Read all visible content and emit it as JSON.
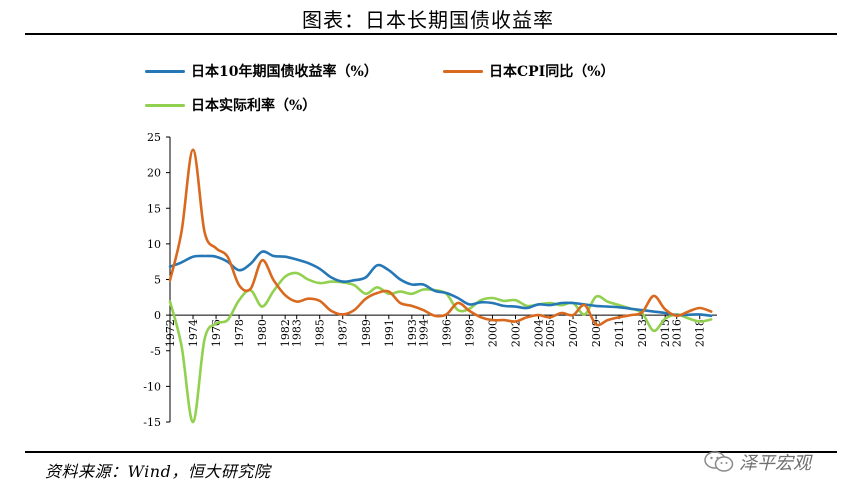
{
  "page": {
    "title": "图表：日本长期国债收益率",
    "source": "资料来源：Wind，恒大研究院",
    "watermark": "泽平宏观"
  },
  "legend": [
    {
      "label": "日本10年期国债收益率（%）",
      "color": "#2577b5"
    },
    {
      "label": "日本CPI同比（%）",
      "color": "#d8691e"
    },
    {
      "label": "日本实际利率（%）",
      "color": "#92d050"
    }
  ],
  "chart_data": {
    "type": "line",
    "ylim": [
      -15,
      25
    ],
    "yticks": [
      -15,
      -10,
      -5,
      0,
      5,
      10,
      15,
      20,
      25
    ],
    "xlim": [
      1972,
      2019.5
    ],
    "xticks": [
      1972,
      1974,
      1976,
      1978,
      1980,
      1982,
      1983,
      1985,
      1987,
      1989,
      1991,
      1993,
      1994,
      1996,
      1998,
      2000,
      2002,
      2004,
      2005,
      2007,
      2009,
      2011,
      2013,
      2015,
      2016,
      2018
    ],
    "series": [
      {
        "name": "日本10年期国债收益率（%）",
        "color": "#2577b5",
        "points": [
          [
            1972,
            6.8
          ],
          [
            1973,
            7.4
          ],
          [
            1974,
            8.2
          ],
          [
            1975,
            8.3
          ],
          [
            1976,
            8.2
          ],
          [
            1977,
            7.5
          ],
          [
            1978,
            6.3
          ],
          [
            1979,
            7.2
          ],
          [
            1980,
            8.9
          ],
          [
            1981,
            8.3
          ],
          [
            1982,
            8.2
          ],
          [
            1983,
            7.8
          ],
          [
            1984,
            7.3
          ],
          [
            1985,
            6.5
          ],
          [
            1986,
            5.3
          ],
          [
            1987,
            4.7
          ],
          [
            1988,
            4.9
          ],
          [
            1989,
            5.3
          ],
          [
            1990,
            7.0
          ],
          [
            1991,
            6.3
          ],
          [
            1992,
            5.0
          ],
          [
            1993,
            4.3
          ],
          [
            1994,
            4.3
          ],
          [
            1995,
            3.4
          ],
          [
            1996,
            3.1
          ],
          [
            1997,
            2.4
          ],
          [
            1998,
            1.5
          ],
          [
            1999,
            1.8
          ],
          [
            2000,
            1.7
          ],
          [
            2001,
            1.3
          ],
          [
            2002,
            1.2
          ],
          [
            2003,
            1.0
          ],
          [
            2004,
            1.5
          ],
          [
            2005,
            1.4
          ],
          [
            2006,
            1.7
          ],
          [
            2007,
            1.7
          ],
          [
            2008,
            1.5
          ],
          [
            2009,
            1.3
          ],
          [
            2010,
            1.2
          ],
          [
            2011,
            1.1
          ],
          [
            2012,
            0.9
          ],
          [
            2013,
            0.7
          ],
          [
            2014,
            0.5
          ],
          [
            2015,
            0.3
          ],
          [
            2016,
            0.0
          ],
          [
            2017,
            0.05
          ],
          [
            2018,
            0.1
          ],
          [
            2019,
            -0.1
          ]
        ]
      },
      {
        "name": "日本CPI同比（%）",
        "color": "#d8691e",
        "points": [
          [
            1972,
            4.9
          ],
          [
            1973,
            11.7
          ],
          [
            1974,
            23.2
          ],
          [
            1975,
            11.7
          ],
          [
            1976,
            9.4
          ],
          [
            1977,
            8.2
          ],
          [
            1978,
            4.2
          ],
          [
            1979,
            3.7
          ],
          [
            1980,
            7.7
          ],
          [
            1981,
            4.9
          ],
          [
            1982,
            2.8
          ],
          [
            1983,
            1.9
          ],
          [
            1984,
            2.3
          ],
          [
            1985,
            2.0
          ],
          [
            1986,
            0.6
          ],
          [
            1987,
            0.1
          ],
          [
            1988,
            0.7
          ],
          [
            1989,
            2.3
          ],
          [
            1990,
            3.1
          ],
          [
            1991,
            3.3
          ],
          [
            1992,
            1.7
          ],
          [
            1993,
            1.3
          ],
          [
            1994,
            0.7
          ],
          [
            1995,
            -0.1
          ],
          [
            1996,
            0.1
          ],
          [
            1997,
            1.7
          ],
          [
            1998,
            0.6
          ],
          [
            1999,
            -0.3
          ],
          [
            2000,
            -0.7
          ],
          [
            2001,
            -0.7
          ],
          [
            2002,
            -0.9
          ],
          [
            2003,
            -0.3
          ],
          [
            2004,
            0.0
          ],
          [
            2005,
            -0.3
          ],
          [
            2006,
            0.3
          ],
          [
            2007,
            0.0
          ],
          [
            2008,
            1.4
          ],
          [
            2009,
            -1.3
          ],
          [
            2010,
            -0.7
          ],
          [
            2011,
            -0.3
          ],
          [
            2012,
            0.0
          ],
          [
            2013,
            0.4
          ],
          [
            2014,
            2.7
          ],
          [
            2015,
            0.8
          ],
          [
            2016,
            -0.1
          ],
          [
            2017,
            0.5
          ],
          [
            2018,
            1.0
          ],
          [
            2019,
            0.5
          ]
        ]
      },
      {
        "name": "日本实际利率（%）",
        "color": "#92d050",
        "points": [
          [
            1972,
            1.9
          ],
          [
            1973,
            -4.3
          ],
          [
            1974,
            -15.0
          ],
          [
            1975,
            -3.4
          ],
          [
            1976,
            -1.2
          ],
          [
            1977,
            -0.7
          ],
          [
            1978,
            2.1
          ],
          [
            1979,
            3.5
          ],
          [
            1980,
            1.2
          ],
          [
            1981,
            3.4
          ],
          [
            1982,
            5.4
          ],
          [
            1983,
            5.9
          ],
          [
            1984,
            5.0
          ],
          [
            1985,
            4.5
          ],
          [
            1986,
            4.7
          ],
          [
            1987,
            4.6
          ],
          [
            1988,
            4.2
          ],
          [
            1989,
            3.0
          ],
          [
            1990,
            3.9
          ],
          [
            1991,
            3.0
          ],
          [
            1992,
            3.3
          ],
          [
            1993,
            3.0
          ],
          [
            1994,
            3.6
          ],
          [
            1995,
            3.5
          ],
          [
            1996,
            3.0
          ],
          [
            1997,
            0.7
          ],
          [
            1998,
            0.9
          ],
          [
            1999,
            2.1
          ],
          [
            2000,
            2.4
          ],
          [
            2001,
            2.0
          ],
          [
            2002,
            2.1
          ],
          [
            2003,
            1.3
          ],
          [
            2004,
            1.5
          ],
          [
            2005,
            1.7
          ],
          [
            2006,
            1.4
          ],
          [
            2007,
            1.7
          ],
          [
            2008,
            0.1
          ],
          [
            2009,
            2.6
          ],
          [
            2010,
            1.9
          ],
          [
            2011,
            1.4
          ],
          [
            2012,
            0.9
          ],
          [
            2013,
            0.3
          ],
          [
            2014,
            -2.2
          ],
          [
            2015,
            -0.5
          ],
          [
            2016,
            0.1
          ],
          [
            2017,
            -0.45
          ],
          [
            2018,
            -0.9
          ],
          [
            2019,
            -0.6
          ]
        ]
      }
    ]
  }
}
